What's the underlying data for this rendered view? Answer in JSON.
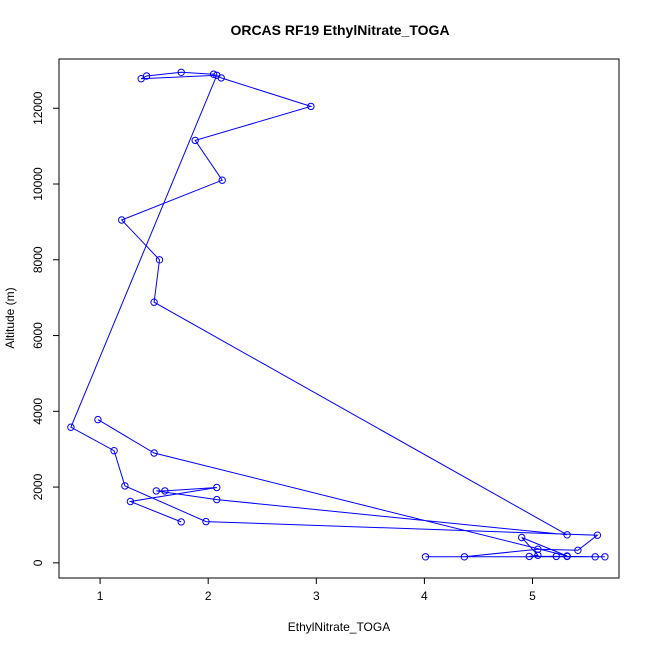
{
  "chart_data": {
    "type": "line",
    "title": "ORCAS RF19 EthylNitrate_TOGA",
    "xlabel": "EthylNitrate_TOGA",
    "ylabel": "Altitude (m)",
    "xlim": [
      0.62,
      5.8
    ],
    "ylim": [
      -400,
      13300
    ],
    "xticks": [
      1,
      2,
      3,
      4,
      5
    ],
    "yticks": [
      0,
      2000,
      4000,
      6000,
      8000,
      10000,
      12000
    ],
    "tick_labels_x": [
      "1",
      "2",
      "3",
      "4",
      "5"
    ],
    "tick_labels_y": [
      "0",
      "2000",
      "4000",
      "6000",
      "8000",
      "10000",
      "12000"
    ],
    "grid": false,
    "series": [
      {
        "color": "#0000ff",
        "x": [
          1.75,
          1.28,
          2.08,
          1.6,
          1.52,
          2.08,
          5.32,
          1.5,
          1.55,
          1.2,
          2.13,
          1.88,
          2.95,
          2.12,
          2.05,
          1.75,
          1.43,
          1.38,
          2.08,
          0.73,
          1.13,
          1.23,
          1.98,
          5.6,
          5.42,
          5.05,
          4.37,
          4.01,
          5.67,
          5.58,
          5.32,
          5.22,
          4.97,
          5.05,
          4.9,
          5.32,
          1.5,
          0.98
        ],
        "y": [
          1080,
          1620,
          1990,
          1900,
          1900,
          1670,
          740,
          6880,
          8000,
          9050,
          10100,
          11150,
          12050,
          12800,
          12900,
          12950,
          12850,
          12780,
          12870,
          3580,
          2960,
          2030,
          1090,
          730,
          330,
          360,
          160,
          160,
          160,
          160,
          170,
          170,
          170,
          200,
          670,
          180,
          2900,
          3780
        ]
      }
    ]
  }
}
